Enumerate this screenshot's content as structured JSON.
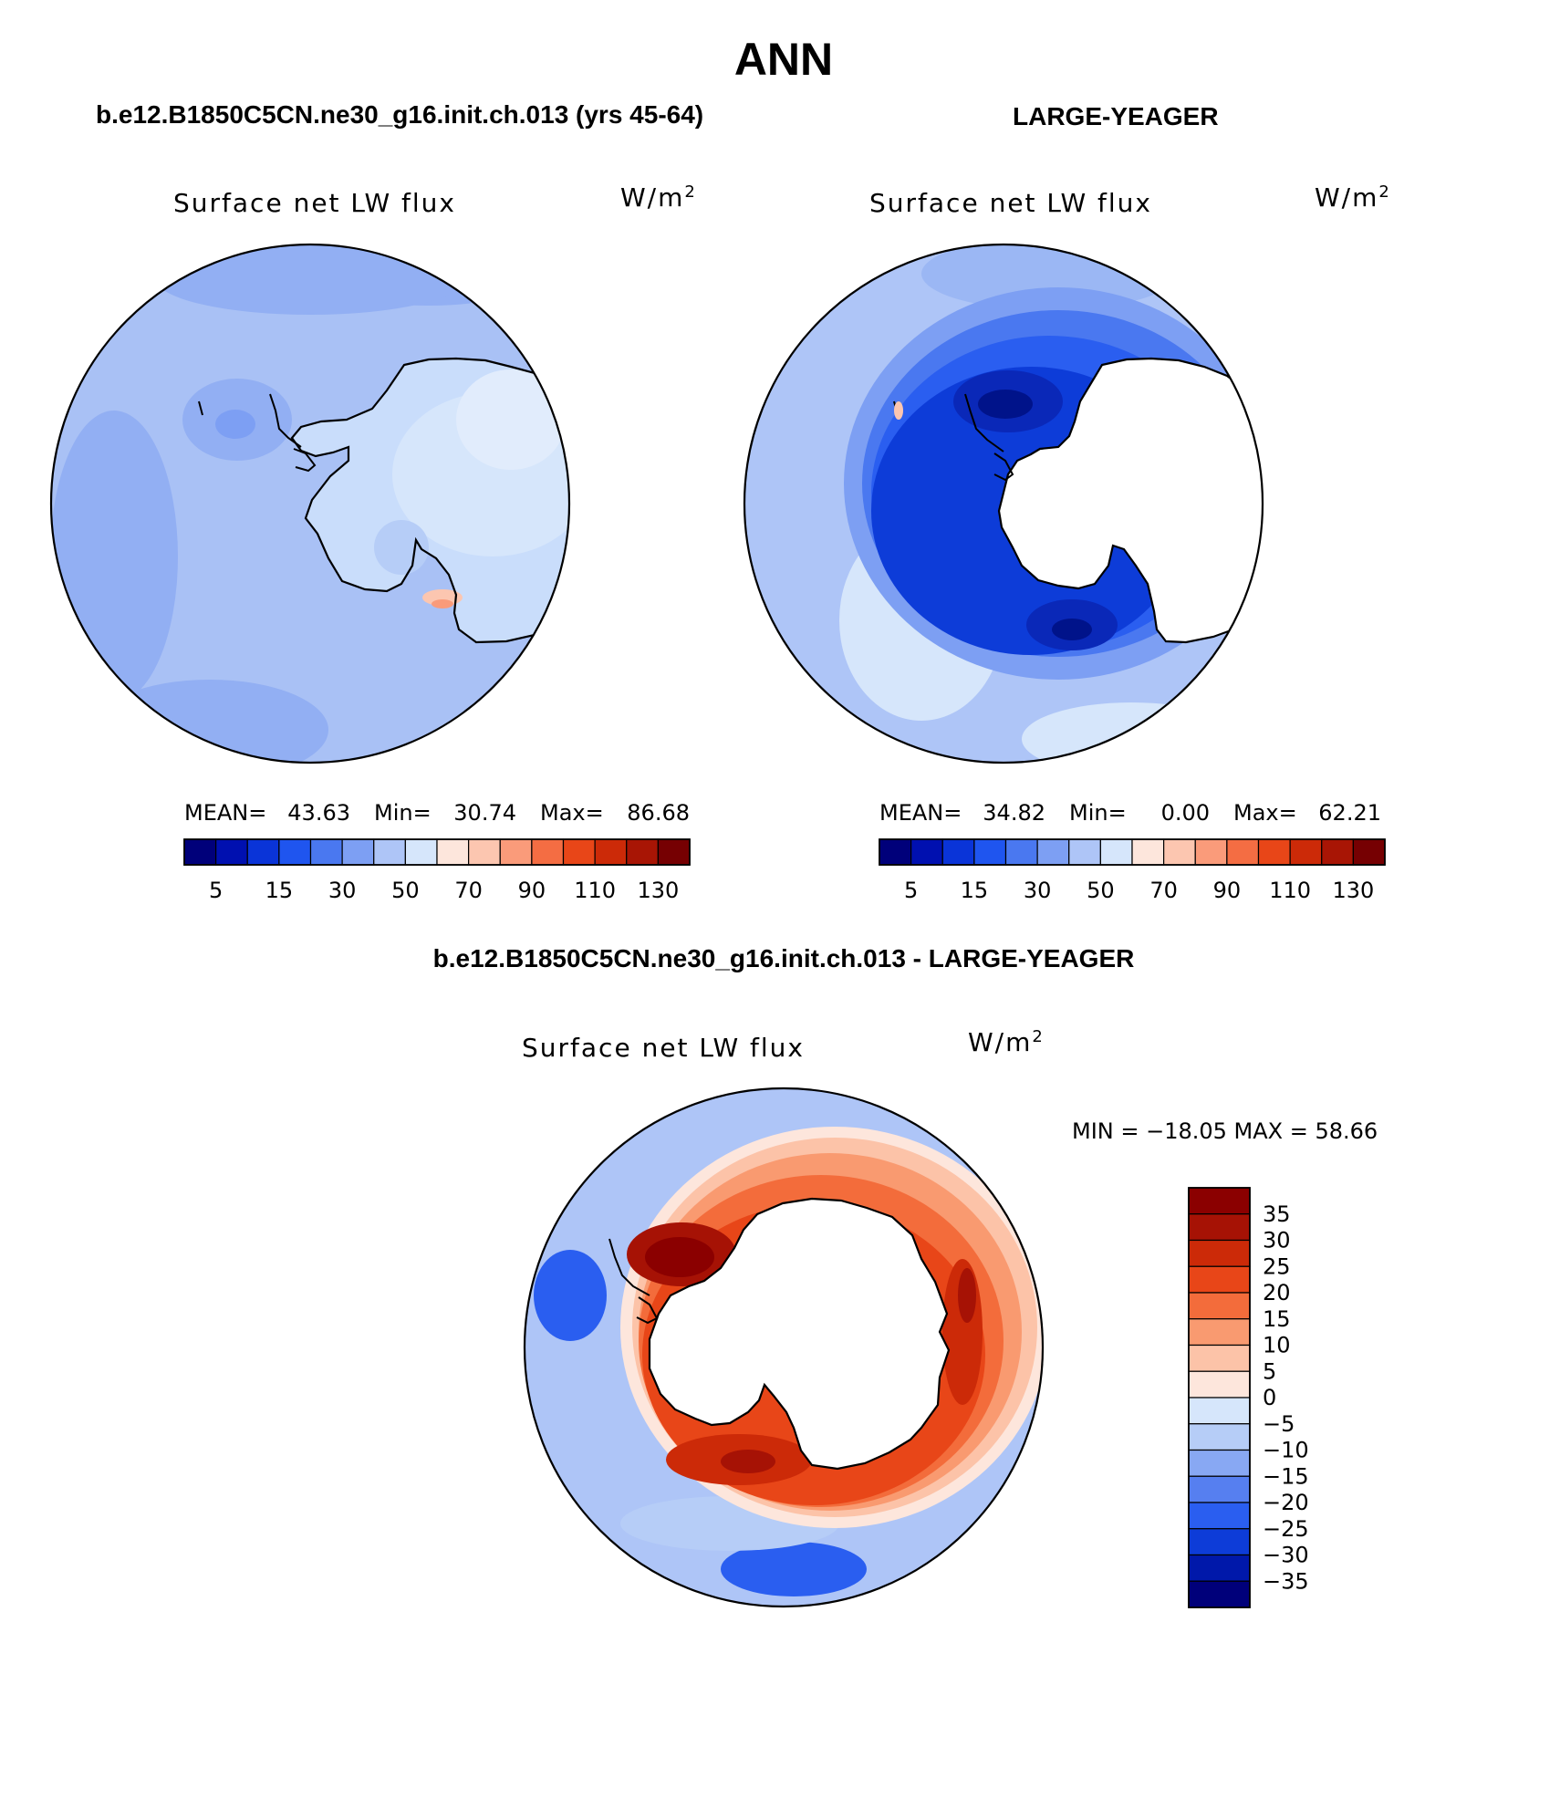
{
  "page": {
    "title": "ANN",
    "left_case": "b.e12.B1850C5CN.ne30_g16.init.ch.013 (yrs 45-64)",
    "right_case": "LARGE-YEAGER",
    "diff_title": "b.e12.B1850C5CN.ne30_g16.init.ch.013 - LARGE-YEAGER"
  },
  "panels": [
    {
      "id": "model",
      "variable": "Surface net LW flux",
      "units_base": "W/m",
      "units_exp": "2",
      "stats": {
        "mean_label": "MEAN=",
        "mean": "43.63",
        "min_label": "Min=",
        "min": "30.74",
        "max_label": "Max=",
        "max": "86.68"
      },
      "colorbar_ticks": [
        "5",
        "15",
        "30",
        "50",
        "70",
        "90",
        "110",
        "130"
      ],
      "field_levels": {
        "open_ocean": 40,
        "coastal_ring": 55,
        "continent": 55
      }
    },
    {
      "id": "obs",
      "variable": "Surface net LW flux",
      "units_base": "W/m",
      "units_exp": "2",
      "stats": {
        "mean_label": "MEAN=",
        "mean": "34.82",
        "min_label": "Min=",
        "min": "0.00",
        "max_label": "Max=",
        "max": "62.21"
      },
      "colorbar_ticks": [
        "5",
        "15",
        "30",
        "50",
        "70",
        "90",
        "110",
        "130"
      ],
      "field_levels": {
        "open_ocean": 45,
        "coastal_ring": 15,
        "continent": "missing"
      }
    },
    {
      "id": "diff",
      "variable": "Surface net LW flux",
      "units_base": "W/m",
      "units_exp": "2",
      "stats": {
        "text": "MIN = −18.05  MAX =   58.66"
      },
      "colorbar_ticks": [
        "35",
        "30",
        "25",
        "20",
        "15",
        "10",
        "5",
        "0",
        "−5",
        "−10",
        "−15",
        "−20",
        "−25",
        "−30",
        "−35"
      ],
      "field_levels": {
        "open_ocean": -8,
        "coastal_ring": 30,
        "continent": "missing"
      }
    }
  ],
  "colormap": {
    "abs_colors": [
      "#00007a",
      "#0010b0",
      "#0a34d8",
      "#1f55ef",
      "#4a78f0",
      "#7d9ff3",
      "#aec5f7",
      "#d6e6fb",
      "#fde6dc",
      "#fcc6b0",
      "#fa9b7a",
      "#f46d43",
      "#e84618",
      "#cc2a08",
      "#a81505",
      "#760002"
    ],
    "diff_colors": [
      "#8b0000",
      "#a61205",
      "#cc2a08",
      "#e84618",
      "#f36c3b",
      "#f99a70",
      "#fcc3a8",
      "#fde6dc",
      "#d6e6fb",
      "#b6cdf7",
      "#88a8f3",
      "#567ff0",
      "#2a5ef0",
      "#0d3cd8",
      "#0018aa",
      "#00007a"
    ]
  }
}
